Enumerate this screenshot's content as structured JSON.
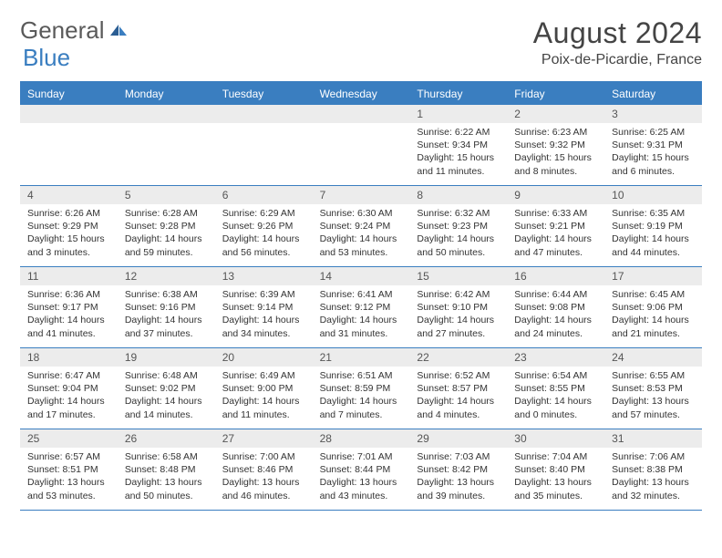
{
  "logo": {
    "text1": "General",
    "text2": "Blue"
  },
  "title": "August 2024",
  "location": "Poix-de-Picardie, France",
  "colors": {
    "accent": "#3a7ec0",
    "daynum_bg": "#ececec",
    "text": "#333333",
    "logo_gray": "#5a5a5a"
  },
  "day_headers": [
    "Sunday",
    "Monday",
    "Tuesday",
    "Wednesday",
    "Thursday",
    "Friday",
    "Saturday"
  ],
  "weeks": [
    [
      {
        "empty": true
      },
      {
        "empty": true
      },
      {
        "empty": true
      },
      {
        "empty": true
      },
      {
        "num": "1",
        "sunrise": "Sunrise: 6:22 AM",
        "sunset": "Sunset: 9:34 PM",
        "daylight1": "Daylight: 15 hours",
        "daylight2": "and 11 minutes."
      },
      {
        "num": "2",
        "sunrise": "Sunrise: 6:23 AM",
        "sunset": "Sunset: 9:32 PM",
        "daylight1": "Daylight: 15 hours",
        "daylight2": "and 8 minutes."
      },
      {
        "num": "3",
        "sunrise": "Sunrise: 6:25 AM",
        "sunset": "Sunset: 9:31 PM",
        "daylight1": "Daylight: 15 hours",
        "daylight2": "and 6 minutes."
      }
    ],
    [
      {
        "num": "4",
        "sunrise": "Sunrise: 6:26 AM",
        "sunset": "Sunset: 9:29 PM",
        "daylight1": "Daylight: 15 hours",
        "daylight2": "and 3 minutes."
      },
      {
        "num": "5",
        "sunrise": "Sunrise: 6:28 AM",
        "sunset": "Sunset: 9:28 PM",
        "daylight1": "Daylight: 14 hours",
        "daylight2": "and 59 minutes."
      },
      {
        "num": "6",
        "sunrise": "Sunrise: 6:29 AM",
        "sunset": "Sunset: 9:26 PM",
        "daylight1": "Daylight: 14 hours",
        "daylight2": "and 56 minutes."
      },
      {
        "num": "7",
        "sunrise": "Sunrise: 6:30 AM",
        "sunset": "Sunset: 9:24 PM",
        "daylight1": "Daylight: 14 hours",
        "daylight2": "and 53 minutes."
      },
      {
        "num": "8",
        "sunrise": "Sunrise: 6:32 AM",
        "sunset": "Sunset: 9:23 PM",
        "daylight1": "Daylight: 14 hours",
        "daylight2": "and 50 minutes."
      },
      {
        "num": "9",
        "sunrise": "Sunrise: 6:33 AM",
        "sunset": "Sunset: 9:21 PM",
        "daylight1": "Daylight: 14 hours",
        "daylight2": "and 47 minutes."
      },
      {
        "num": "10",
        "sunrise": "Sunrise: 6:35 AM",
        "sunset": "Sunset: 9:19 PM",
        "daylight1": "Daylight: 14 hours",
        "daylight2": "and 44 minutes."
      }
    ],
    [
      {
        "num": "11",
        "sunrise": "Sunrise: 6:36 AM",
        "sunset": "Sunset: 9:17 PM",
        "daylight1": "Daylight: 14 hours",
        "daylight2": "and 41 minutes."
      },
      {
        "num": "12",
        "sunrise": "Sunrise: 6:38 AM",
        "sunset": "Sunset: 9:16 PM",
        "daylight1": "Daylight: 14 hours",
        "daylight2": "and 37 minutes."
      },
      {
        "num": "13",
        "sunrise": "Sunrise: 6:39 AM",
        "sunset": "Sunset: 9:14 PM",
        "daylight1": "Daylight: 14 hours",
        "daylight2": "and 34 minutes."
      },
      {
        "num": "14",
        "sunrise": "Sunrise: 6:41 AM",
        "sunset": "Sunset: 9:12 PM",
        "daylight1": "Daylight: 14 hours",
        "daylight2": "and 31 minutes."
      },
      {
        "num": "15",
        "sunrise": "Sunrise: 6:42 AM",
        "sunset": "Sunset: 9:10 PM",
        "daylight1": "Daylight: 14 hours",
        "daylight2": "and 27 minutes."
      },
      {
        "num": "16",
        "sunrise": "Sunrise: 6:44 AM",
        "sunset": "Sunset: 9:08 PM",
        "daylight1": "Daylight: 14 hours",
        "daylight2": "and 24 minutes."
      },
      {
        "num": "17",
        "sunrise": "Sunrise: 6:45 AM",
        "sunset": "Sunset: 9:06 PM",
        "daylight1": "Daylight: 14 hours",
        "daylight2": "and 21 minutes."
      }
    ],
    [
      {
        "num": "18",
        "sunrise": "Sunrise: 6:47 AM",
        "sunset": "Sunset: 9:04 PM",
        "daylight1": "Daylight: 14 hours",
        "daylight2": "and 17 minutes."
      },
      {
        "num": "19",
        "sunrise": "Sunrise: 6:48 AM",
        "sunset": "Sunset: 9:02 PM",
        "daylight1": "Daylight: 14 hours",
        "daylight2": "and 14 minutes."
      },
      {
        "num": "20",
        "sunrise": "Sunrise: 6:49 AM",
        "sunset": "Sunset: 9:00 PM",
        "daylight1": "Daylight: 14 hours",
        "daylight2": "and 11 minutes."
      },
      {
        "num": "21",
        "sunrise": "Sunrise: 6:51 AM",
        "sunset": "Sunset: 8:59 PM",
        "daylight1": "Daylight: 14 hours",
        "daylight2": "and 7 minutes."
      },
      {
        "num": "22",
        "sunrise": "Sunrise: 6:52 AM",
        "sunset": "Sunset: 8:57 PM",
        "daylight1": "Daylight: 14 hours",
        "daylight2": "and 4 minutes."
      },
      {
        "num": "23",
        "sunrise": "Sunrise: 6:54 AM",
        "sunset": "Sunset: 8:55 PM",
        "daylight1": "Daylight: 14 hours",
        "daylight2": "and 0 minutes."
      },
      {
        "num": "24",
        "sunrise": "Sunrise: 6:55 AM",
        "sunset": "Sunset: 8:53 PM",
        "daylight1": "Daylight: 13 hours",
        "daylight2": "and 57 minutes."
      }
    ],
    [
      {
        "num": "25",
        "sunrise": "Sunrise: 6:57 AM",
        "sunset": "Sunset: 8:51 PM",
        "daylight1": "Daylight: 13 hours",
        "daylight2": "and 53 minutes."
      },
      {
        "num": "26",
        "sunrise": "Sunrise: 6:58 AM",
        "sunset": "Sunset: 8:48 PM",
        "daylight1": "Daylight: 13 hours",
        "daylight2": "and 50 minutes."
      },
      {
        "num": "27",
        "sunrise": "Sunrise: 7:00 AM",
        "sunset": "Sunset: 8:46 PM",
        "daylight1": "Daylight: 13 hours",
        "daylight2": "and 46 minutes."
      },
      {
        "num": "28",
        "sunrise": "Sunrise: 7:01 AM",
        "sunset": "Sunset: 8:44 PM",
        "daylight1": "Daylight: 13 hours",
        "daylight2": "and 43 minutes."
      },
      {
        "num": "29",
        "sunrise": "Sunrise: 7:03 AM",
        "sunset": "Sunset: 8:42 PM",
        "daylight1": "Daylight: 13 hours",
        "daylight2": "and 39 minutes."
      },
      {
        "num": "30",
        "sunrise": "Sunrise: 7:04 AM",
        "sunset": "Sunset: 8:40 PM",
        "daylight1": "Daylight: 13 hours",
        "daylight2": "and 35 minutes."
      },
      {
        "num": "31",
        "sunrise": "Sunrise: 7:06 AM",
        "sunset": "Sunset: 8:38 PM",
        "daylight1": "Daylight: 13 hours",
        "daylight2": "and 32 minutes."
      }
    ]
  ]
}
